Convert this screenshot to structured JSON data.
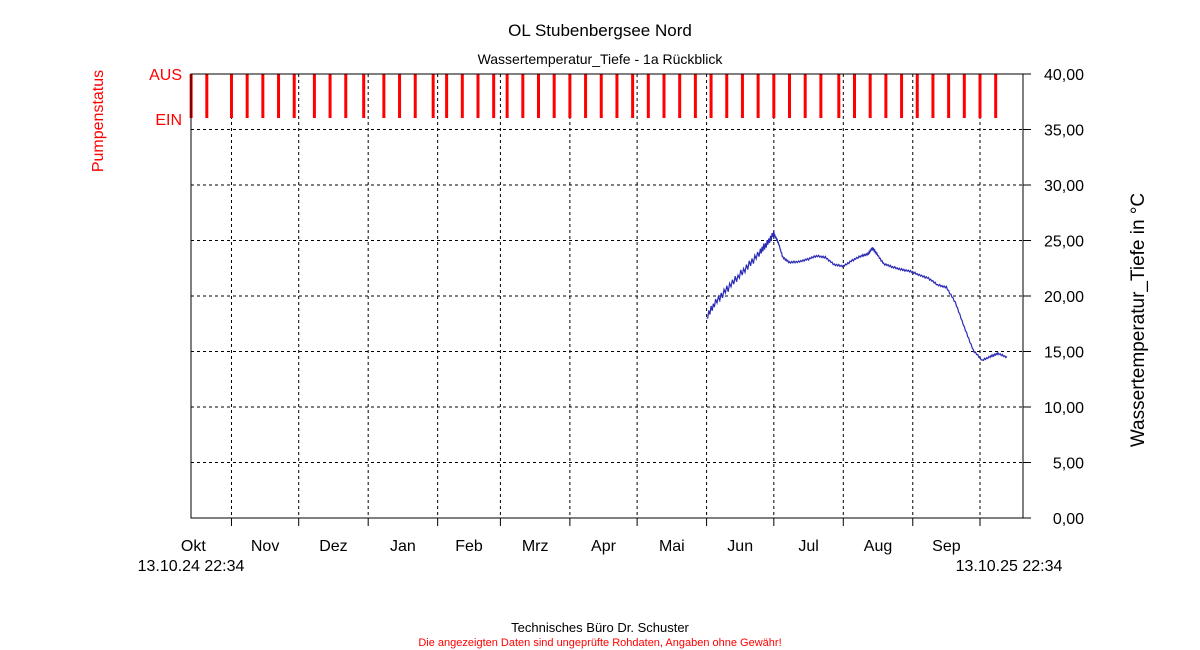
{
  "title": "OL Stubenbergsee Nord",
  "subtitle": "Wassertemperatur_Tiefe - 1a Rückblick",
  "footer": {
    "company": "Technisches Büro Dr. Schuster",
    "disclaimer": "Die angezeigten Daten sind ungeprüfte Rohdaten, Angaben ohne Gewähr!"
  },
  "colors": {
    "pump": "#ff0000",
    "temperature": "#2a2ab4",
    "axis": "#000000",
    "grid": "#000000"
  },
  "chart_data": {
    "type": "line",
    "title": "OL Stubenbergsee Nord",
    "subtitle": "Wassertemperatur_Tiefe - 1a Rückblick",
    "ylabel": "Wassertemperatur_Tiefe in °C",
    "ylim": [
      0,
      40
    ],
    "ytick_labels": [
      "0,00",
      "5,00",
      "10,00",
      "15,00",
      "20,00",
      "25,00",
      "30,00",
      "35,00",
      "40,00"
    ],
    "grid": true,
    "x_range": [
      "13.10.24 22:34",
      "13.10.25 22:34"
    ],
    "x_start_label": "13.10.24 22:34",
    "x_end_label": "13.10.25 22:34",
    "months": [
      "Okt",
      "Nov",
      "Dez",
      "Jan",
      "Feb",
      "Mrz",
      "Apr",
      "Mai",
      "Jun",
      "Jul",
      "Aug",
      "Sep"
    ],
    "month_starts": [
      "2024-11-01",
      "2024-12-01",
      "2025-01-01",
      "2025-02-01",
      "2025-03-01",
      "2025-04-01",
      "2025-05-01",
      "2025-06-01",
      "2025-07-01",
      "2025-08-01",
      "2025-09-01",
      "2025-10-01"
    ],
    "pump_status": {
      "label": "Pumpenstatus",
      "levels": [
        "AUS",
        "EIN"
      ],
      "pulse_dates": [
        "2024-10-14",
        "2024-10-21",
        "2024-11-01",
        "2024-11-08",
        "2024-11-15",
        "2024-11-22",
        "2024-11-29",
        "2024-12-08",
        "2024-12-15",
        "2024-12-22",
        "2024-12-30",
        "2025-01-08",
        "2025-01-15",
        "2025-01-22",
        "2025-01-30",
        "2025-02-05",
        "2025-02-12",
        "2025-02-19",
        "2025-02-26",
        "2025-03-04",
        "2025-03-11",
        "2025-03-18",
        "2025-03-25",
        "2025-04-01",
        "2025-04-08",
        "2025-04-15",
        "2025-04-22",
        "2025-04-29",
        "2025-05-06",
        "2025-05-13",
        "2025-05-20",
        "2025-05-27",
        "2025-06-03",
        "2025-06-10",
        "2025-06-17",
        "2025-06-24",
        "2025-07-01",
        "2025-07-08",
        "2025-07-15",
        "2025-07-22",
        "2025-07-30",
        "2025-08-06",
        "2025-08-13",
        "2025-08-20",
        "2025-08-27",
        "2025-09-03",
        "2025-09-10",
        "2025-09-17",
        "2025-09-24",
        "2025-10-01",
        "2025-10-08"
      ]
    },
    "series": [
      {
        "name": "",
        "x": [
          "2025-06-01",
          "2025-06-05",
          "2025-06-10",
          "2025-06-15",
          "2025-06-20",
          "2025-06-25",
          "2025-06-28",
          "2025-07-01",
          "2025-07-03",
          "2025-07-05",
          "2025-07-08",
          "2025-07-12",
          "2025-07-16",
          "2025-07-20",
          "2025-07-24",
          "2025-07-28",
          "2025-08-01",
          "2025-08-05",
          "2025-08-09",
          "2025-08-12",
          "2025-08-14",
          "2025-08-16",
          "2025-08-19",
          "2025-08-23",
          "2025-08-27",
          "2025-08-31",
          "2025-09-04",
          "2025-09-08",
          "2025-09-12",
          "2025-09-16",
          "2025-09-20",
          "2025-09-24",
          "2025-09-28",
          "2025-10-02",
          "2025-10-06",
          "2025-10-09",
          "2025-10-13"
        ],
        "values": [
          18.0,
          19.5,
          20.6,
          21.7,
          22.9,
          23.9,
          24.8,
          25.6,
          24.8,
          23.5,
          23.0,
          23.1,
          23.3,
          23.6,
          23.5,
          22.8,
          22.7,
          23.2,
          23.6,
          23.8,
          24.3,
          23.8,
          22.9,
          22.6,
          22.4,
          22.2,
          21.9,
          21.6,
          21.0,
          20.8,
          19.4,
          17.2,
          15.1,
          14.2,
          14.6,
          14.8,
          14.5
        ]
      }
    ]
  }
}
